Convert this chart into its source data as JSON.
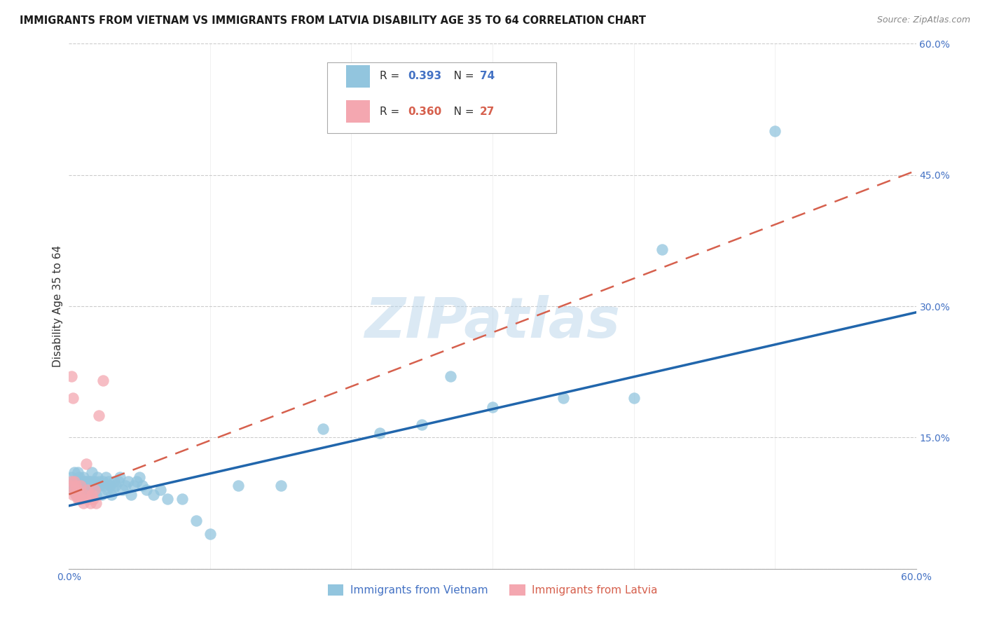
{
  "title": "IMMIGRANTS FROM VIETNAM VS IMMIGRANTS FROM LATVIA DISABILITY AGE 35 TO 64 CORRELATION CHART",
  "source": "Source: ZipAtlas.com",
  "ylabel": "Disability Age 35 to 64",
  "watermark": "ZIPatlas",
  "xlim": [
    0.0,
    0.6
  ],
  "ylim": [
    0.0,
    0.6
  ],
  "xticks": [
    0.0,
    0.1,
    0.2,
    0.3,
    0.4,
    0.5,
    0.6
  ],
  "yticks": [
    0.0,
    0.15,
    0.3,
    0.45,
    0.6
  ],
  "legend_vietnam": "Immigrants from Vietnam",
  "legend_latvia": "Immigrants from Latvia",
  "R_vietnam": "0.393",
  "N_vietnam": "74",
  "R_latvia": "0.360",
  "N_latvia": "27",
  "color_vietnam": "#92c5de",
  "color_latvia": "#f4a7b0",
  "trendline_vietnam_color": "#2166ac",
  "trendline_latvia_color": "#d6604d",
  "grid_color": "#cccccc",
  "background_color": "#ffffff",
  "vietnam_x": [
    0.001,
    0.002,
    0.003,
    0.004,
    0.004,
    0.005,
    0.005,
    0.006,
    0.006,
    0.007,
    0.007,
    0.007,
    0.008,
    0.008,
    0.009,
    0.009,
    0.01,
    0.01,
    0.011,
    0.011,
    0.012,
    0.012,
    0.013,
    0.014,
    0.014,
    0.015,
    0.015,
    0.016,
    0.017,
    0.018,
    0.019,
    0.02,
    0.02,
    0.021,
    0.022,
    0.023,
    0.024,
    0.025,
    0.026,
    0.027,
    0.028,
    0.029,
    0.03,
    0.031,
    0.032,
    0.033,
    0.035,
    0.036,
    0.038,
    0.04,
    0.042,
    0.044,
    0.046,
    0.048,
    0.05,
    0.052,
    0.055,
    0.06,
    0.065,
    0.07,
    0.08,
    0.09,
    0.1,
    0.12,
    0.15,
    0.18,
    0.22,
    0.25,
    0.27,
    0.3,
    0.35,
    0.4,
    0.42,
    0.5
  ],
  "vietnam_y": [
    0.095,
    0.105,
    0.09,
    0.11,
    0.1,
    0.085,
    0.1,
    0.09,
    0.11,
    0.08,
    0.095,
    0.105,
    0.09,
    0.1,
    0.085,
    0.1,
    0.09,
    0.105,
    0.095,
    0.1,
    0.09,
    0.1,
    0.095,
    0.1,
    0.09,
    0.1,
    0.095,
    0.11,
    0.095,
    0.1,
    0.085,
    0.095,
    0.105,
    0.1,
    0.095,
    0.085,
    0.1,
    0.095,
    0.105,
    0.09,
    0.1,
    0.095,
    0.085,
    0.09,
    0.1,
    0.095,
    0.1,
    0.105,
    0.09,
    0.095,
    0.1,
    0.085,
    0.095,
    0.1,
    0.105,
    0.095,
    0.09,
    0.085,
    0.09,
    0.08,
    0.08,
    0.055,
    0.04,
    0.095,
    0.095,
    0.16,
    0.155,
    0.165,
    0.22,
    0.185,
    0.195,
    0.195,
    0.365,
    0.5
  ],
  "latvia_x": [
    0.001,
    0.002,
    0.002,
    0.003,
    0.003,
    0.004,
    0.004,
    0.005,
    0.005,
    0.006,
    0.006,
    0.007,
    0.007,
    0.008,
    0.009,
    0.01,
    0.011,
    0.012,
    0.013,
    0.014,
    0.015,
    0.016,
    0.017,
    0.018,
    0.019,
    0.021,
    0.024
  ],
  "latvia_y": [
    0.095,
    0.22,
    0.1,
    0.195,
    0.085,
    0.09,
    0.1,
    0.085,
    0.095,
    0.08,
    0.09,
    0.08,
    0.085,
    0.095,
    0.08,
    0.075,
    0.085,
    0.12,
    0.09,
    0.08,
    0.075,
    0.085,
    0.08,
    0.09,
    0.075,
    0.175,
    0.215
  ],
  "viet_trend_x": [
    0.0,
    0.6
  ],
  "viet_trend_y": [
    0.072,
    0.293
  ],
  "latv_trend_x": [
    0.0,
    0.6
  ],
  "latv_trend_y": [
    0.085,
    0.455
  ]
}
